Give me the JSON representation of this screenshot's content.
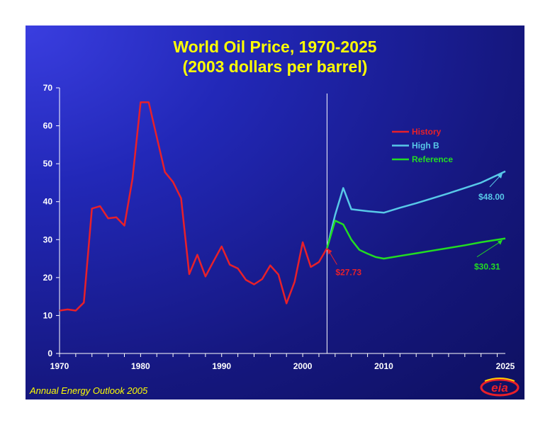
{
  "footer": "Annual Energy Outlook 2005",
  "logo_text": "eia",
  "colors": {
    "title": "#ffff00",
    "history": "#e8202a",
    "high_b": "#58c8e8",
    "reference": "#22dd22",
    "axis": "#ffffff"
  },
  "chart_data": {
    "type": "line",
    "title": "World Oil Price, 1970-2025",
    "subtitle": "(2003 dollars per barrel)",
    "xlim": [
      1970,
      2025
    ],
    "ylim": [
      0,
      70
    ],
    "x_tick_labels": [
      "1970",
      "1980",
      "1990",
      "2000",
      "2010",
      "2025"
    ],
    "y_tick_labels": [
      "0",
      "10",
      "20",
      "30",
      "40",
      "50",
      "60",
      "70"
    ],
    "grid": false,
    "legend_position": "top-right",
    "divider_x": 2003,
    "series": [
      {
        "name": "History",
        "color": "#e8202a",
        "x": [
          1970,
          1971,
          1972,
          1973,
          1974,
          1975,
          1976,
          1977,
          1978,
          1979,
          1980,
          1981,
          1982,
          1983,
          1984,
          1985,
          1986,
          1987,
          1988,
          1989,
          1990,
          1991,
          1992,
          1993,
          1994,
          1995,
          1996,
          1997,
          1998,
          1999,
          2000,
          2001,
          2002,
          2003
        ],
        "y": [
          11.3,
          11.6,
          11.3,
          13.4,
          38.2,
          38.8,
          35.6,
          35.9,
          33.7,
          46.0,
          66.2,
          66.2,
          57.0,
          47.8,
          45.2,
          40.9,
          20.9,
          26.0,
          20.3,
          24.3,
          28.2,
          23.4,
          22.4,
          19.4,
          18.2,
          19.6,
          23.2,
          20.8,
          13.2,
          18.9,
          29.3,
          22.8,
          24.1,
          27.73
        ]
      },
      {
        "name": "High B",
        "color": "#58c8e8",
        "x": [
          2003,
          2004,
          2005,
          2006,
          2008,
          2010,
          2012,
          2014,
          2016,
          2018,
          2020,
          2022,
          2025
        ],
        "y": [
          27.73,
          36.5,
          43.6,
          38.0,
          37.5,
          37.1,
          38.4,
          39.6,
          40.9,
          42.2,
          43.6,
          45.0,
          48.0
        ]
      },
      {
        "name": "Reference",
        "color": "#22dd22",
        "x": [
          2003,
          2004,
          2005,
          2006,
          2007,
          2008,
          2009,
          2010,
          2012,
          2014,
          2016,
          2018,
          2020,
          2022,
          2025
        ],
        "y": [
          27.73,
          35.0,
          34.0,
          30.0,
          27.3,
          26.3,
          25.4,
          25.0,
          25.7,
          26.4,
          27.1,
          27.8,
          28.5,
          29.3,
          30.31
        ]
      }
    ],
    "annotations": [
      {
        "text": "$27.73",
        "x": 2003,
        "y": 27.73,
        "color": "#e8202a"
      },
      {
        "text": "$48.00",
        "x": 2025,
        "y": 48.0,
        "color": "#58c8e8"
      },
      {
        "text": "$30.31",
        "x": 2025,
        "y": 30.31,
        "color": "#22dd22"
      }
    ]
  }
}
